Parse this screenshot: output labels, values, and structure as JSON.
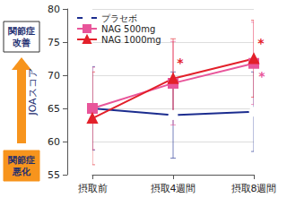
{
  "chart_data": {
    "type": "line",
    "categories": [
      "摂取前",
      "摂取4週間",
      "摂取8週間"
    ],
    "y_label": "JOAスコア",
    "ylim": [
      55,
      80
    ],
    "yticks": [
      55,
      60,
      65,
      70,
      75,
      80
    ],
    "grid": true,
    "legend": "upper left",
    "annotations": {
      "top": "関節症\n改善",
      "bottom": "関節症\n悪化"
    },
    "series": [
      {
        "name": "プラセボ",
        "color": "#1c2d8f",
        "marker": "circle_open",
        "values": [
          65,
          64,
          64.5
        ],
        "errors": [
          6.3,
          6.5,
          6
        ]
      },
      {
        "name": "NAG 500mg",
        "color": "#e8559a",
        "marker": "square",
        "values": [
          65,
          68.8,
          71.8
        ],
        "errors": [
          6.2,
          6.3,
          6.2
        ],
        "significance": [
          null,
          null,
          "*"
        ]
      },
      {
        "name": "NAG 1000mg",
        "color": "#e3202a",
        "marker": "triangle",
        "values": [
          63.5,
          69.5,
          72.5
        ],
        "errors": [
          7,
          6,
          5.8
        ],
        "significance": [
          null,
          "*",
          "*"
        ]
      }
    ]
  }
}
